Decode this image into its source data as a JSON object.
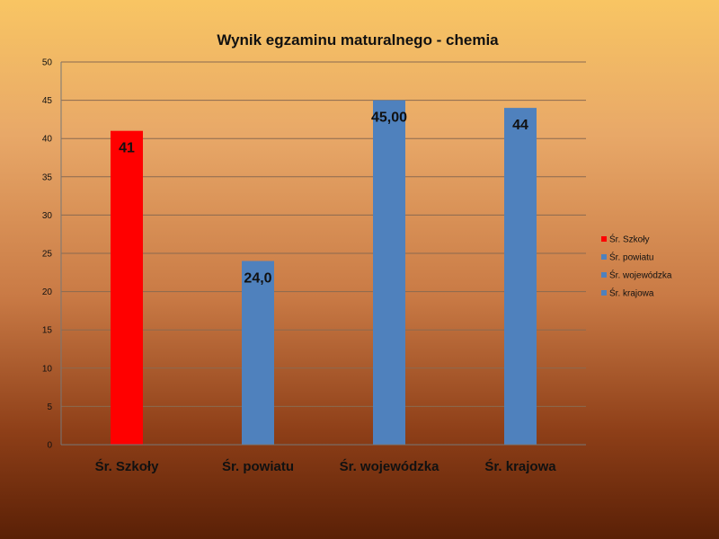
{
  "chart_data": {
    "type": "bar",
    "title": "Wynik egzaminu maturalnego - chemia",
    "categories": [
      "Śr. Szkoły",
      "Śr. powiatu",
      "Śr. wojewódzka",
      "Śr. krajowa"
    ],
    "values": [
      41,
      24,
      45,
      44
    ],
    "data_labels": [
      "41",
      "24,0",
      "45,00",
      "44"
    ],
    "colors": [
      "#ff0000",
      "#4f81bd",
      "#4f81bd",
      "#4f81bd"
    ],
    "legend": [
      "Śr. Szkoły",
      "Śr. powiatu",
      "Śr. wojewódzka",
      "Śr. krajowa"
    ],
    "legend_colors": [
      "#ff0000",
      "#4f81bd",
      "#4f81bd",
      "#4f81bd"
    ],
    "legend_position": "right",
    "ylim": [
      0,
      50
    ],
    "yticks": [
      0,
      5,
      10,
      15,
      20,
      25,
      30,
      35,
      40,
      45,
      50
    ],
    "grid": true,
    "xlabel": "",
    "ylabel": ""
  }
}
